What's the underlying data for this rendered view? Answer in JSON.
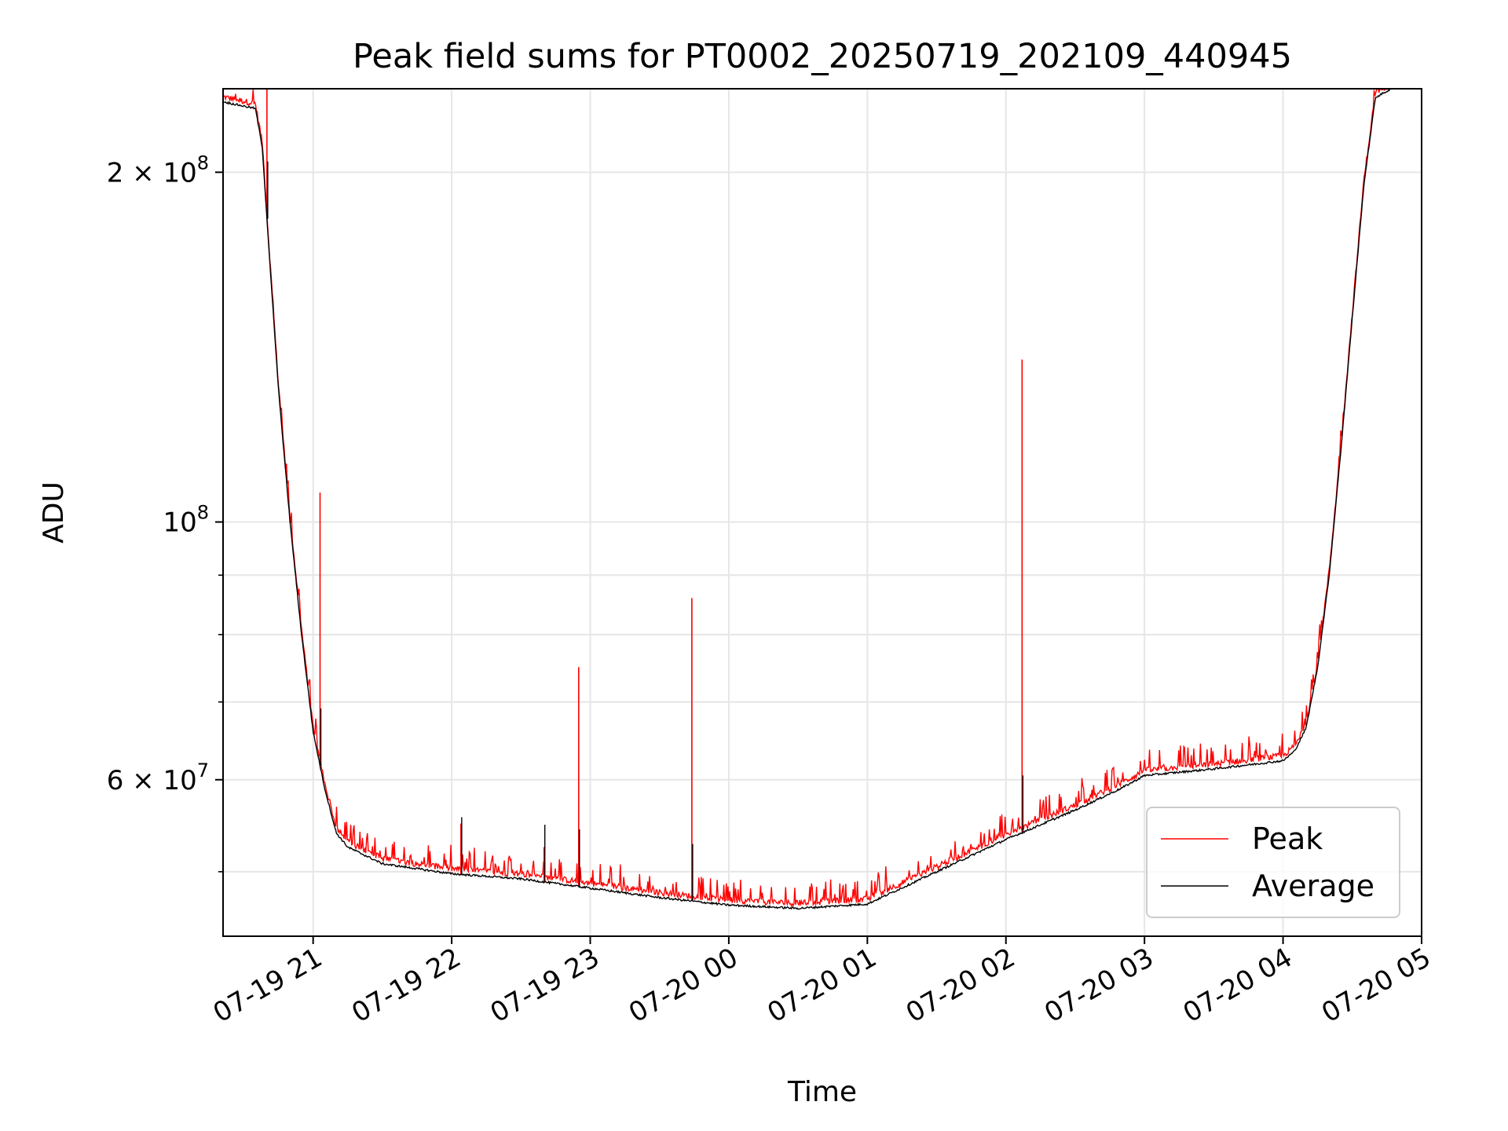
{
  "chart_data": {
    "type": "line",
    "title": "Peak field sums for PT0002_20250719_202109_440945",
    "xlabel": "Time",
    "ylabel": "ADU",
    "yscale": "log",
    "grid": true,
    "legend_position": "lower-right",
    "colors": {
      "Peak": "#ff0000",
      "Average": "#000000"
    },
    "xlim": [
      "2025-07-19 20:21",
      "2025-07-20 05:00"
    ],
    "ylim": [
      44000000,
      236000000
    ],
    "x_ticks": [
      {
        "value": "2025-07-19 21:00",
        "label": "07-19 21"
      },
      {
        "value": "2025-07-19 22:00",
        "label": "07-19 22"
      },
      {
        "value": "2025-07-19 23:00",
        "label": "07-19 23"
      },
      {
        "value": "2025-07-20 00:00",
        "label": "07-20 00"
      },
      {
        "value": "2025-07-20 01:00",
        "label": "07-20 01"
      },
      {
        "value": "2025-07-20 02:00",
        "label": "07-20 02"
      },
      {
        "value": "2025-07-20 03:00",
        "label": "07-20 03"
      },
      {
        "value": "2025-07-20 04:00",
        "label": "07-20 04"
      },
      {
        "value": "2025-07-20 05:00",
        "label": "07-20 05"
      }
    ],
    "y_ticks_major": [
      {
        "value": 200000000,
        "label": "2 × 10^8",
        "mantissa": "2",
        "exp": "8"
      },
      {
        "value": 100000000,
        "label": "10^8",
        "mantissa": "",
        "exp": "8"
      },
      {
        "value": 60000000,
        "label": "6 × 10^7",
        "mantissa": "6",
        "exp": "7"
      }
    ],
    "y_ticks_minor": [
      50000000,
      70000000,
      80000000,
      90000000,
      300000000
    ],
    "series": [
      {
        "name": "Average",
        "points": [
          [
            "2025-07-19 20:21",
            230000000
          ],
          [
            "2025-07-19 20:30",
            228000000
          ],
          [
            "2025-07-19 20:35",
            227000000
          ],
          [
            "2025-07-19 20:38",
            210000000
          ],
          [
            "2025-07-19 20:41",
            170000000
          ],
          [
            "2025-07-19 20:45",
            130000000
          ],
          [
            "2025-07-19 20:50",
            100000000
          ],
          [
            "2025-07-19 20:55",
            80000000
          ],
          [
            "2025-07-19 21:00",
            66000000
          ],
          [
            "2025-07-19 21:05",
            59000000
          ],
          [
            "2025-07-19 21:10",
            54000000
          ],
          [
            "2025-07-19 21:15",
            52500000
          ],
          [
            "2025-07-19 21:30",
            50800000
          ],
          [
            "2025-07-19 22:00",
            49800000
          ],
          [
            "2025-07-19 22:30",
            49300000
          ],
          [
            "2025-07-19 23:00",
            48400000
          ],
          [
            "2025-07-19 23:30",
            47500000
          ],
          [
            "2025-07-20 00:00",
            46800000
          ],
          [
            "2025-07-20 00:30",
            46500000
          ],
          [
            "2025-07-20 01:00",
            46900000
          ],
          [
            "2025-07-20 01:30",
            50000000
          ],
          [
            "2025-07-20 02:00",
            53300000
          ],
          [
            "2025-07-20 02:30",
            56500000
          ],
          [
            "2025-07-20 02:50",
            59000000
          ],
          [
            "2025-07-20 03:00",
            60500000
          ],
          [
            "2025-07-20 03:30",
            61300000
          ],
          [
            "2025-07-20 04:00",
            62300000
          ],
          [
            "2025-07-20 04:05",
            63500000
          ],
          [
            "2025-07-20 04:10",
            66500000
          ],
          [
            "2025-07-20 04:15",
            75000000
          ],
          [
            "2025-07-20 04:20",
            90000000
          ],
          [
            "2025-07-20 04:25",
            115000000
          ],
          [
            "2025-07-20 04:30",
            150000000
          ],
          [
            "2025-07-20 04:35",
            195000000
          ],
          [
            "2025-07-20 04:40",
            232000000
          ],
          [
            "2025-07-20 04:47",
            236000000
          ]
        ]
      },
      {
        "name": "Peak",
        "spikes": [
          [
            "2025-07-19 20:40",
            236000000
          ],
          [
            "2025-07-19 21:03",
            106000000
          ],
          [
            "2025-07-19 22:04",
            55000000
          ],
          [
            "2025-07-19 22:40",
            52500000
          ],
          [
            "2025-07-19 22:55",
            75000000
          ],
          [
            "2025-07-19 23:44",
            86000000
          ],
          [
            "2025-07-20 02:07",
            138000000
          ]
        ]
      }
    ]
  }
}
